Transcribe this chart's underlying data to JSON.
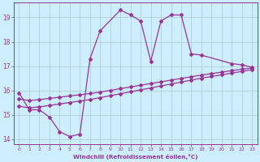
{
  "xlabel": "Windchill (Refroidissement éolien,°C)",
  "bg_color": "#cceeff",
  "line_color": "#993399",
  "grid_color": "#aacccc",
  "xlim": [
    -0.5,
    23.5
  ],
  "ylim": [
    13.8,
    19.6
  ],
  "yticks": [
    14,
    15,
    16,
    17,
    18,
    19
  ],
  "xticks": [
    0,
    1,
    2,
    3,
    4,
    5,
    6,
    7,
    8,
    9,
    10,
    11,
    12,
    13,
    14,
    15,
    16,
    17,
    18,
    19,
    20,
    21,
    22,
    23
  ],
  "line1_x": [
    0,
    1,
    2,
    3,
    4,
    5,
    6,
    7,
    8,
    10,
    11,
    12,
    13,
    14,
    15,
    16,
    17,
    18,
    21,
    22,
    23
  ],
  "line1_y": [
    15.9,
    15.2,
    15.2,
    14.9,
    14.3,
    14.1,
    14.2,
    17.3,
    18.45,
    19.3,
    19.1,
    18.85,
    17.2,
    18.85,
    19.1,
    19.1,
    17.5,
    17.45,
    17.1,
    17.05,
    16.95
  ],
  "line2_x": [
    0,
    1,
    2,
    3,
    4,
    5,
    6,
    7,
    8,
    9,
    10,
    11,
    12,
    13,
    14,
    15,
    16,
    17,
    18,
    19,
    20,
    21,
    22,
    23
  ],
  "line2_y": [
    15.35,
    15.28,
    15.32,
    15.38,
    15.44,
    15.5,
    15.56,
    15.62,
    15.7,
    15.78,
    15.86,
    15.94,
    16.02,
    16.1,
    16.18,
    16.26,
    16.34,
    16.42,
    16.5,
    16.57,
    16.64,
    16.71,
    16.78,
    16.85
  ],
  "line3_x": [
    0,
    1,
    2,
    3,
    4,
    5,
    6,
    7,
    8,
    9,
    10,
    11,
    12,
    13,
    14,
    15,
    16,
    17,
    18,
    19,
    20,
    21,
    22,
    23
  ],
  "line3_y": [
    15.65,
    15.58,
    15.62,
    15.67,
    15.72,
    15.77,
    15.82,
    15.87,
    15.93,
    16.0,
    16.07,
    16.14,
    16.21,
    16.28,
    16.35,
    16.42,
    16.49,
    16.56,
    16.63,
    16.69,
    16.75,
    16.81,
    16.87,
    16.92
  ]
}
